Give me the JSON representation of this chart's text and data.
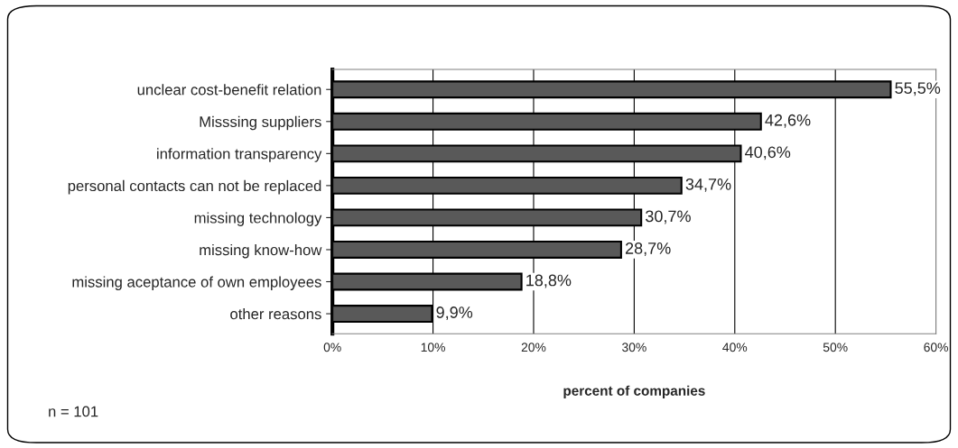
{
  "chart_data": {
    "type": "bar",
    "orientation": "horizontal",
    "xlabel": "percent of companies",
    "categories": [
      "unclear cost-benefit relation",
      "Misssing suppliers",
      "information transparency",
      "personal contacts can not be replaced",
      "missing technology",
      "missing know-how",
      "missing aceptance of own employees",
      "other reasons"
    ],
    "values": [
      55.5,
      42.6,
      40.6,
      34.7,
      30.7,
      28.7,
      18.8,
      9.9
    ],
    "value_labels": [
      "55,5%",
      "42,6%",
      "40,6%",
      "34,7%",
      "30,7%",
      "28,7%",
      "18,8%",
      "9,9%"
    ],
    "color": "#595959",
    "xlim": [
      0,
      60
    ],
    "xticks": [
      {
        "value": 0,
        "label": "0%"
      },
      {
        "value": 10,
        "label": "10%"
      },
      {
        "value": 20,
        "label": "20%"
      },
      {
        "value": 30,
        "label": "30%"
      },
      {
        "value": 40,
        "label": "40%"
      },
      {
        "value": 50,
        "label": "50%"
      },
      {
        "value": 60,
        "label": "60%"
      }
    ],
    "grid": "x",
    "legend": false,
    "annotations": [
      "n = 101"
    ]
  }
}
